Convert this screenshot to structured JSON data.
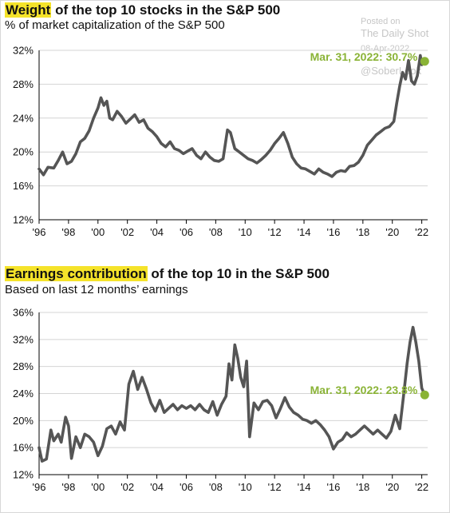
{
  "watermark": {
    "posted": "Posted on",
    "source": "The Daily Shot",
    "date": "08-Apr-2022",
    "handle": "@SoberLook"
  },
  "colors": {
    "line": "#555555",
    "highlight": "#f5e32a",
    "marker": "#8ab336"
  },
  "chart_data": [
    {
      "type": "line",
      "title_highlight": "Weight",
      "title_rest": " of the top 10 stocks in the S&P 500",
      "subtitle": "% of market capitalization of the S&P 500",
      "ylim": [
        12,
        32
      ],
      "yticks": [
        12,
        16,
        20,
        24,
        28,
        32
      ],
      "ytick_labels": [
        "12%",
        "16%",
        "20%",
        "24%",
        "28%",
        "32%"
      ],
      "xlim": [
        1996,
        2022.4
      ],
      "xticks": [
        1996,
        1998,
        2000,
        2002,
        2004,
        2006,
        2008,
        2010,
        2012,
        2014,
        2016,
        2018,
        2020,
        2022
      ],
      "xtick_labels": [
        "'96",
        "'98",
        "'00",
        "'02",
        "'04",
        "'06",
        "'08",
        "'10",
        "'12",
        "'14",
        "'16",
        "'18",
        "'20",
        "'22"
      ],
      "series": [
        {
          "x": [
            1996.0,
            1996.3,
            1996.6,
            1997.0,
            1997.3,
            1997.6,
            1997.9,
            1998.2,
            1998.5,
            1998.8,
            1999.1,
            1999.4,
            1999.7,
            2000.0,
            2000.2,
            2000.4,
            2000.6,
            2000.8,
            2001.0,
            2001.3,
            2001.6,
            2001.9,
            2002.2,
            2002.5,
            2002.8,
            2003.1,
            2003.4,
            2003.7,
            2004.0,
            2004.3,
            2004.6,
            2004.9,
            2005.2,
            2005.5,
            2005.8,
            2006.1,
            2006.4,
            2006.7,
            2007.0,
            2007.3,
            2007.6,
            2007.9,
            2008.2,
            2008.5,
            2008.8,
            2009.0,
            2009.3,
            2009.6,
            2009.9,
            2010.2,
            2010.5,
            2010.8,
            2011.1,
            2011.4,
            2011.7,
            2012.0,
            2012.3,
            2012.6,
            2012.9,
            2013.2,
            2013.5,
            2013.8,
            2014.1,
            2014.4,
            2014.7,
            2015.0,
            2015.3,
            2015.6,
            2015.9,
            2016.2,
            2016.5,
            2016.8,
            2017.1,
            2017.4,
            2017.7,
            2018.0,
            2018.3,
            2018.6,
            2018.9,
            2019.2,
            2019.5,
            2019.8,
            2020.1,
            2020.3,
            2020.5,
            2020.7,
            2020.9,
            2021.1,
            2021.3,
            2021.5,
            2021.7,
            2021.9,
            2022.0,
            2022.2
          ],
          "values": [
            18.0,
            17.3,
            18.2,
            18.1,
            19.0,
            20.0,
            18.6,
            18.9,
            19.8,
            21.2,
            21.6,
            22.5,
            24.0,
            25.2,
            26.4,
            25.5,
            26.0,
            24.0,
            23.8,
            24.8,
            24.2,
            23.4,
            23.9,
            24.4,
            23.5,
            23.8,
            22.8,
            22.4,
            21.8,
            21.0,
            20.6,
            21.2,
            20.4,
            20.2,
            19.8,
            20.1,
            20.4,
            19.6,
            19.2,
            20.0,
            19.4,
            19.0,
            18.9,
            19.2,
            22.6,
            22.3,
            20.4,
            20.0,
            19.6,
            19.2,
            19.0,
            18.7,
            19.1,
            19.6,
            20.2,
            21.0,
            21.6,
            22.3,
            21.0,
            19.4,
            18.6,
            18.1,
            18.0,
            17.7,
            17.4,
            18.0,
            17.6,
            17.4,
            17.1,
            17.6,
            17.8,
            17.7,
            18.3,
            18.4,
            18.8,
            19.6,
            20.8,
            21.4,
            22.0,
            22.4,
            22.8,
            23.0,
            23.6,
            25.8,
            27.8,
            29.4,
            28.6,
            30.8,
            28.4,
            28.0,
            29.0,
            31.4,
            30.3,
            30.7
          ]
        }
      ],
      "annotation": {
        "x": 2022.2,
        "y": 30.7,
        "text": "Mar. 31, 2022: 30.7%"
      }
    },
    {
      "type": "line",
      "title_highlight": "Earnings contribution",
      "title_rest": " of the top 10 in the S&P 500",
      "subtitle": "Based on last 12 months’ earnings",
      "ylim": [
        12,
        36
      ],
      "yticks": [
        12,
        16,
        20,
        24,
        28,
        32,
        36
      ],
      "ytick_labels": [
        "12%",
        "16%",
        "20%",
        "24%",
        "28%",
        "32%",
        "36%"
      ],
      "xlim": [
        1996,
        2022.4
      ],
      "xticks": [
        1996,
        1998,
        2000,
        2002,
        2004,
        2006,
        2008,
        2010,
        2012,
        2014,
        2016,
        2018,
        2020,
        2022
      ],
      "xtick_labels": [
        "'96",
        "'98",
        "'00",
        "'02",
        "'04",
        "'06",
        "'08",
        "'10",
        "'12",
        "'14",
        "'16",
        "'18",
        "'20",
        "'22"
      ],
      "series": [
        {
          "x": [
            1996.0,
            1996.2,
            1996.5,
            1996.8,
            1997.0,
            1997.3,
            1997.5,
            1997.8,
            1998.0,
            1998.2,
            1998.5,
            1998.8,
            1999.1,
            1999.4,
            1999.7,
            2000.0,
            2000.3,
            2000.6,
            2000.9,
            2001.2,
            2001.5,
            2001.8,
            2002.1,
            2002.4,
            2002.7,
            2003.0,
            2003.3,
            2003.6,
            2003.9,
            2004.2,
            2004.5,
            2004.8,
            2005.1,
            2005.4,
            2005.7,
            2006.0,
            2006.3,
            2006.6,
            2006.9,
            2007.2,
            2007.5,
            2007.8,
            2008.1,
            2008.4,
            2008.7,
            2008.9,
            2009.1,
            2009.3,
            2009.5,
            2009.7,
            2009.9,
            2010.1,
            2010.3,
            2010.6,
            2010.9,
            2011.2,
            2011.5,
            2011.8,
            2012.1,
            2012.4,
            2012.7,
            2013.0,
            2013.3,
            2013.6,
            2013.9,
            2014.2,
            2014.5,
            2014.8,
            2015.1,
            2015.4,
            2015.7,
            2016.0,
            2016.3,
            2016.6,
            2016.9,
            2017.2,
            2017.5,
            2017.8,
            2018.1,
            2018.4,
            2018.7,
            2019.0,
            2019.3,
            2019.6,
            2019.9,
            2020.2,
            2020.5,
            2020.8,
            2021.0,
            2021.2,
            2021.4,
            2021.6,
            2021.8,
            2022.0,
            2022.2
          ],
          "values": [
            16.0,
            14.0,
            14.3,
            18.6,
            17.0,
            18.0,
            16.8,
            20.5,
            19.2,
            14.4,
            17.6,
            16.0,
            18.0,
            17.6,
            16.8,
            14.8,
            16.2,
            18.8,
            19.2,
            18.0,
            19.8,
            18.6,
            25.4,
            27.3,
            24.6,
            26.4,
            24.6,
            22.6,
            21.4,
            23.0,
            21.2,
            21.8,
            22.4,
            21.6,
            22.2,
            21.8,
            22.2,
            21.6,
            22.4,
            21.6,
            21.2,
            22.8,
            20.8,
            22.4,
            23.6,
            28.4,
            26.0,
            31.2,
            29.2,
            26.4,
            25.0,
            28.8,
            17.6,
            22.6,
            21.6,
            22.8,
            23.0,
            22.2,
            20.4,
            21.8,
            23.4,
            22.0,
            21.2,
            20.8,
            20.2,
            20.0,
            19.6,
            20.0,
            19.4,
            18.6,
            17.6,
            15.8,
            16.8,
            17.2,
            18.2,
            17.6,
            18.0,
            18.6,
            19.2,
            18.6,
            18.0,
            18.6,
            18.0,
            17.4,
            18.4,
            20.8,
            18.8,
            24.4,
            28.4,
            31.6,
            33.8,
            31.6,
            28.8,
            24.8,
            23.8
          ]
        }
      ],
      "annotation": {
        "x": 2022.2,
        "y": 23.8,
        "text": "Mar. 31, 2022: 23.8%"
      }
    }
  ]
}
